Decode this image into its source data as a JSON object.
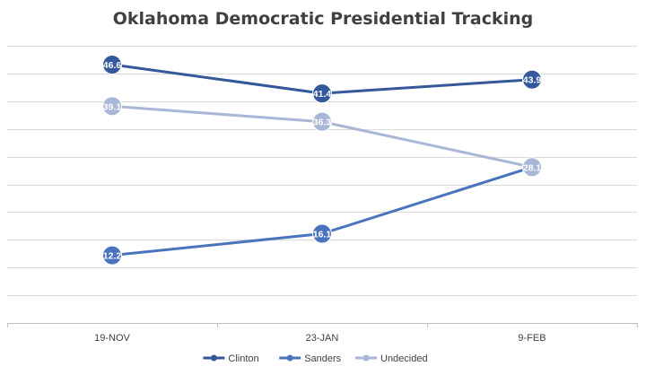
{
  "chart_data": {
    "type": "line",
    "title": "Oklahoma Democratic Presidential Tracking",
    "categories": [
      "19-NOV",
      "23-JAN",
      "9-FEB"
    ],
    "series": [
      {
        "name": "Clinton",
        "values": [
          46.6,
          41.4,
          43.9
        ],
        "color": "#34589a",
        "label_color": "#ffffff"
      },
      {
        "name": "Sanders",
        "values": [
          12.2,
          16.1,
          28.1
        ],
        "color": "#4a73bd",
        "label_color": "#ffffff"
      },
      {
        "name": "Undecided",
        "values": [
          39.1,
          36.3,
          28.1
        ],
        "color": "#a9b7d6",
        "label_color": "#ffffff"
      }
    ],
    "ylim": [
      0,
      50
    ],
    "ygrid_step": 5,
    "grid": true,
    "y_tick_labels_shown": false,
    "legend_position": "bottom"
  }
}
